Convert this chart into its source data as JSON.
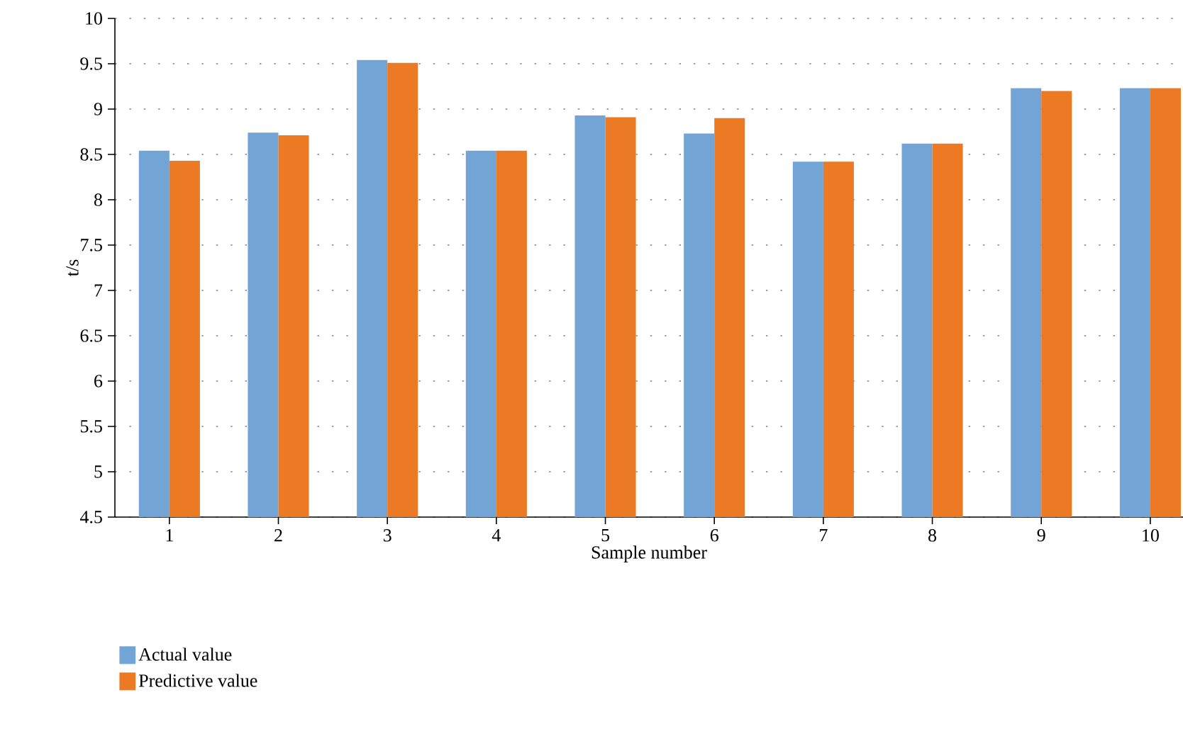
{
  "chart_data": {
    "type": "bar",
    "xlabel": "Sample number",
    "ylabel": "t/s",
    "categories": [
      "1",
      "2",
      "3",
      "4",
      "5",
      "6",
      "7",
      "8",
      "9",
      "10"
    ],
    "series": [
      {
        "name": "Actual value",
        "color": "#72a5d6",
        "values": [
          8.54,
          8.74,
          9.54,
          8.54,
          8.93,
          8.73,
          8.42,
          8.62,
          9.23,
          9.23
        ]
      },
      {
        "name": "Predictive value",
        "color": "#ec7a24",
        "values": [
          8.43,
          8.71,
          9.51,
          8.54,
          8.91,
          8.9,
          8.42,
          8.62,
          9.2,
          9.23
        ]
      }
    ],
    "ylim": [
      4.5,
      10
    ],
    "yticks": [
      4.5,
      5,
      5.5,
      6,
      6.5,
      7,
      7.5,
      8,
      8.5,
      9,
      9.5,
      10
    ],
    "grid": "y",
    "legend": "bottom left"
  }
}
